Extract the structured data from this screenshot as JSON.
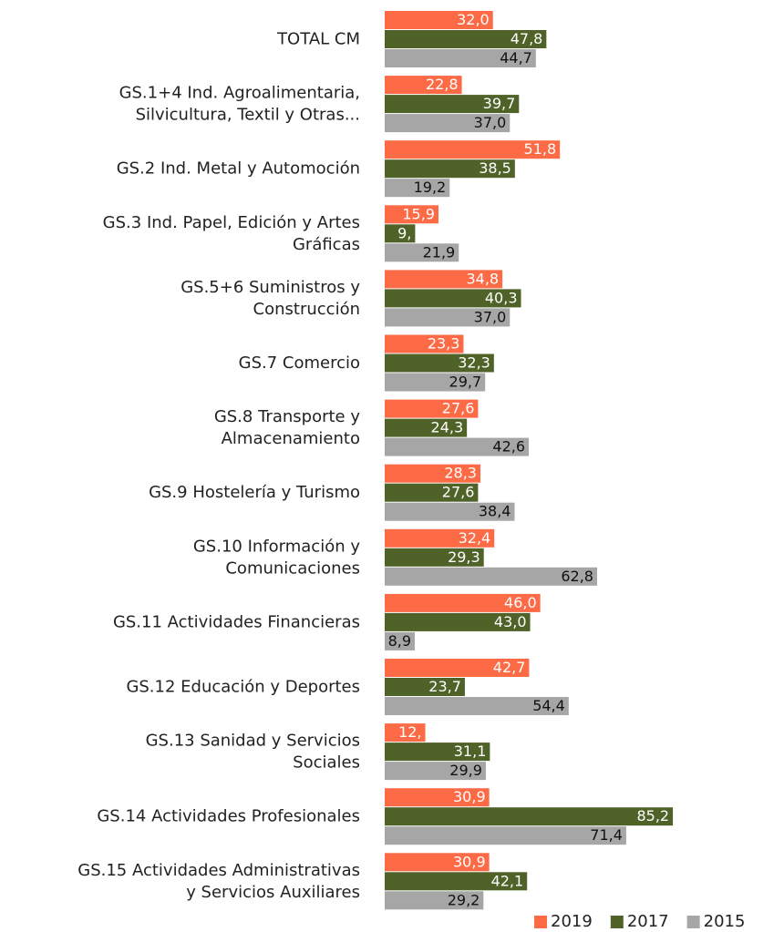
{
  "chart_data": {
    "type": "hbar",
    "categories": [
      "TOTAL CM",
      "GS.1+4 Ind. Agroalimentaria,\nSilvicultura, Textil y Otras...",
      "GS.2 Ind. Metal y Automoción",
      "GS.3 Ind. Papel, Edición y Artes\nGráficas",
      "GS.5+6 Suministros y\nConstrucción",
      "GS.7 Comercio",
      "GS.8 Transporte y\nAlmacenamiento",
      "GS.9 Hostelería y Turismo",
      "GS.10 Información y\nComunicaciones",
      "GS.11 Actividades Financieras",
      "GS.12 Educación y Deportes",
      "GS.13 Sanidad y Servicios\nSociales",
      "GS.14 Actividades Profesionales",
      "GS.15 Actividades Administrativas\ny Servicios  Auxiliares"
    ],
    "series": [
      {
        "name": "2019",
        "color": "#fd6a46",
        "label_color": "#ffffff",
        "values": [
          32.0,
          22.8,
          51.8,
          15.9,
          34.8,
          23.3,
          27.6,
          28.3,
          32.4,
          46.0,
          42.7,
          12,
          30.9,
          30.9
        ],
        "value_labels": [
          "32,0",
          "22,8",
          "51,8",
          "15,9",
          "34,8",
          "23,3",
          "27,6",
          "28,3",
          "32,4",
          "46,0",
          "42,7",
          "12,",
          "30,9",
          "30,9"
        ]
      },
      {
        "name": "2017",
        "color": "#4f6228",
        "label_color": "#ffffff",
        "values": [
          47.8,
          39.7,
          38.5,
          9,
          40.3,
          32.3,
          24.3,
          27.6,
          29.3,
          43.0,
          23.7,
          31.1,
          85.2,
          42.1
        ],
        "value_labels": [
          "47,8",
          "39,7",
          "38,5",
          "9,",
          "40,3",
          "32,3",
          "24,3",
          "27,6",
          "29,3",
          "43,0",
          "23,7",
          "31,1",
          "85,2",
          "42,1"
        ]
      },
      {
        "name": "2015",
        "color": "#a6a6a6",
        "label_color": "#111111",
        "values": [
          44.7,
          37.0,
          19.2,
          21.9,
          37.0,
          29.7,
          42.6,
          38.4,
          62.8,
          8.9,
          54.4,
          29.9,
          71.4,
          29.2
        ],
        "value_labels": [
          "44,7",
          "37,0",
          "19,2",
          "21,9",
          "37,0",
          "29,7",
          "42,6",
          "38,4",
          "62,8",
          "8,9",
          "54,4",
          "29,9",
          "71,4",
          "29,2"
        ]
      }
    ],
    "xlim": [
      0,
      100
    ],
    "legend": "bottom"
  }
}
